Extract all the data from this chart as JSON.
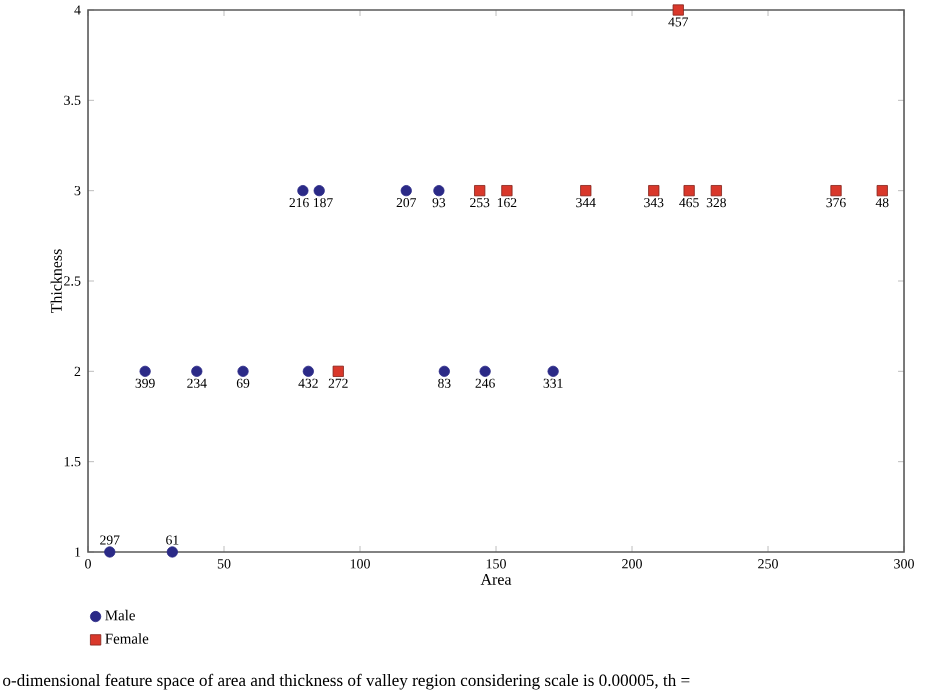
{
  "chart_data": {
    "type": "scatter",
    "xlabel": "Area",
    "ylabel": "Thickness",
    "xlim": [
      0,
      300
    ],
    "xticks": [
      0,
      50,
      100,
      150,
      200,
      250,
      300
    ],
    "ylim": [
      1,
      4
    ],
    "yticks": [
      1,
      1.5,
      2,
      2.5,
      3,
      3.5,
      4
    ],
    "legend": "bottom left",
    "grid": false,
    "series": [
      {
        "name": "Male",
        "color": "#2b2a87",
        "marker": "circle",
        "x": [
          79,
          85,
          117,
          129,
          21,
          40,
          57,
          81,
          131,
          146,
          171,
          8,
          31
        ],
        "values": [
          3,
          3,
          3,
          3,
          2,
          2,
          2,
          2,
          2,
          2,
          2,
          1,
          1
        ]
      },
      {
        "name": "Female",
        "color": "#d9382b",
        "marker": "square",
        "x": [
          144,
          154,
          183,
          208,
          221,
          231,
          275,
          292,
          92,
          217
        ],
        "values": [
          3,
          3,
          3,
          3,
          3,
          3,
          3,
          3,
          2,
          4
        ]
      }
    ],
    "annotations": [
      {
        "text": "216",
        "x": 79,
        "y": 3
      },
      {
        "text": "187",
        "x": 85,
        "y": 3
      },
      {
        "text": "207",
        "x": 117,
        "y": 3
      },
      {
        "text": "93",
        "x": 129,
        "y": 3
      },
      {
        "text": "253",
        "x": 144,
        "y": 3
      },
      {
        "text": "162",
        "x": 154,
        "y": 3
      },
      {
        "text": "344",
        "x": 183,
        "y": 3
      },
      {
        "text": "343",
        "x": 208,
        "y": 3
      },
      {
        "text": "465",
        "x": 221,
        "y": 3
      },
      {
        "text": "328",
        "x": 231,
        "y": 3
      },
      {
        "text": "376",
        "x": 275,
        "y": 3
      },
      {
        "text": "48",
        "x": 292,
        "y": 3
      },
      {
        "text": "457",
        "x": 217,
        "y": 4
      },
      {
        "text": "399",
        "x": 21,
        "y": 2
      },
      {
        "text": "234",
        "x": 40,
        "y": 2
      },
      {
        "text": "69",
        "x": 57,
        "y": 2
      },
      {
        "text": "432",
        "x": 81,
        "y": 2
      },
      {
        "text": "272",
        "x": 92,
        "y": 2
      },
      {
        "text": "83",
        "x": 131,
        "y": 2
      },
      {
        "text": "246",
        "x": 146,
        "y": 2
      },
      {
        "text": "331",
        "x": 171,
        "y": 2
      },
      {
        "text": "297",
        "x": 8,
        "y": 1
      },
      {
        "text": "61",
        "x": 31,
        "y": 1
      },
      "o-dimensional feature space of area and thickness of valley region considering scale is 0.00005, th ="
    ]
  }
}
